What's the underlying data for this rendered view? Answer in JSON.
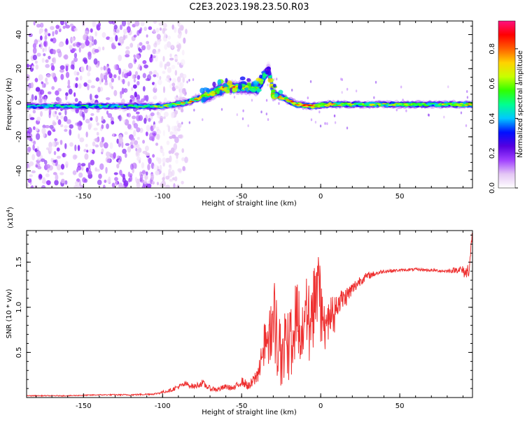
{
  "title": "C2E3.2023.198.23.50.R03",
  "colorbar": {
    "label": "Normalized spectral amplitude",
    "ticks": [
      "0.0",
      "0.2",
      "0.4",
      "0.6",
      "0.8"
    ],
    "tick_values": [
      0.0,
      0.2,
      0.4,
      0.6,
      0.8
    ],
    "range": [
      0,
      0.96
    ],
    "stops": [
      "#ffffff",
      "#e4c6f5",
      "#a040ff",
      "#5500e0",
      "#0010ff",
      "#00c8ff",
      "#00ff90",
      "#30ff00",
      "#c8ff00",
      "#ffd200",
      "#ff6000",
      "#ff0000",
      "#ff1080"
    ]
  },
  "chart_data": [
    {
      "type": "heatmap",
      "title": "C2E3.2023.198.23.50.R03",
      "xlabel": "Height of straight line (km)",
      "ylabel": "Frequency (Hz)",
      "xlim": [
        -186,
        96
      ],
      "ylim": [
        -50,
        48
      ],
      "xticks": [
        -150,
        -100,
        -50,
        0,
        50
      ],
      "xtick_labels": [
        "-150",
        "-100",
        "-50",
        "0",
        "50"
      ],
      "yticks": [
        -40,
        -20,
        0,
        20,
        40
      ],
      "ytick_labels": [
        "-40",
        "-20",
        "0",
        "20",
        "40"
      ],
      "ridge": [
        {
          "x": -186,
          "f": -2,
          "amp": 0.45
        },
        {
          "x": -150,
          "f": -2,
          "amp": 0.5
        },
        {
          "x": -120,
          "f": -2,
          "amp": 0.5
        },
        {
          "x": -100,
          "f": -2,
          "amp": 0.6
        },
        {
          "x": -85,
          "f": 0,
          "amp": 0.7
        },
        {
          "x": -70,
          "f": 5,
          "amp": 0.75
        },
        {
          "x": -60,
          "f": 9,
          "amp": 0.75
        },
        {
          "x": -50,
          "f": 9,
          "amp": 0.7
        },
        {
          "x": -40,
          "f": 8,
          "amp": 0.65
        },
        {
          "x": -33,
          "f": 20,
          "amp": 0.35
        },
        {
          "x": -30,
          "f": 5,
          "amp": 0.9
        },
        {
          "x": -22,
          "f": 2,
          "amp": 0.8
        },
        {
          "x": -15,
          "f": -1,
          "amp": 0.85
        },
        {
          "x": -5,
          "f": -2,
          "amp": 0.8
        },
        {
          "x": 5,
          "f": -1,
          "amp": 0.75
        },
        {
          "x": 20,
          "f": -1,
          "amp": 0.65
        },
        {
          "x": 50,
          "f": -1,
          "amp": 0.6
        },
        {
          "x": 80,
          "f": -1,
          "amp": 0.65
        },
        {
          "x": 96,
          "f": -1,
          "amp": 0.8
        }
      ],
      "noise_region_x": [
        -186,
        -105
      ],
      "noise_level": 0.12
    },
    {
      "type": "line",
      "xlabel": "Height of straight line (km)",
      "ylabel": "SNR (10 * v/v)",
      "multiplier": "(x10",
      "multiplier_exponent": "4",
      "multiplier_close": ")",
      "xlim": [
        -186,
        96
      ],
      "ylim": [
        0,
        1.85
      ],
      "xticks": [
        -150,
        -100,
        -50,
        0,
        50
      ],
      "xtick_labels": [
        "-150",
        "-100",
        "-50",
        "0",
        "50"
      ],
      "yticks": [
        0.5,
        1.0,
        1.5
      ],
      "ytick_labels": [
        "0.5",
        "1.0",
        "1.5"
      ],
      "color": "#ee3030",
      "series": [
        {
          "x": [
            -186,
            -160,
            -140,
            -120,
            -105,
            -95,
            -90,
            -85,
            -80,
            -75,
            -70,
            -65,
            -60,
            -55,
            -50,
            -45,
            -40,
            -37,
            -35,
            -32,
            -30,
            -28,
            -25,
            -22,
            -20,
            -17,
            -15,
            -12,
            -10,
            -7,
            -5,
            -3,
            -1,
            0,
            2,
            5,
            8,
            10,
            15,
            20,
            25,
            30,
            40,
            50,
            60,
            70,
            80,
            88,
            92,
            94,
            96
          ],
          "y": [
            0.02,
            0.02,
            0.03,
            0.03,
            0.04,
            0.08,
            0.12,
            0.15,
            0.12,
            0.16,
            0.1,
            0.09,
            0.12,
            0.1,
            0.18,
            0.12,
            0.25,
            0.55,
            0.7,
            0.85,
            1.05,
            0.8,
            0.6,
            0.95,
            0.7,
            0.85,
            1.0,
            0.75,
            1.1,
            0.9,
            1.1,
            1.35,
            1.6,
            1.05,
            0.85,
            1.0,
            0.95,
            1.05,
            1.1,
            1.2,
            1.3,
            1.35,
            1.4,
            1.41,
            1.42,
            1.41,
            1.4,
            1.42,
            1.38,
            1.45,
            1.8
          ],
          "jitter": [
            0.005,
            0.005,
            0.006,
            0.008,
            0.01,
            0.02,
            0.03,
            0.03,
            0.03,
            0.04,
            0.03,
            0.03,
            0.03,
            0.03,
            0.05,
            0.05,
            0.1,
            0.2,
            0.25,
            0.3,
            0.35,
            0.3,
            0.3,
            0.35,
            0.3,
            0.35,
            0.35,
            0.3,
            0.35,
            0.35,
            0.35,
            0.35,
            0.35,
            0.25,
            0.2,
            0.2,
            0.18,
            0.15,
            0.12,
            0.08,
            0.06,
            0.04,
            0.02,
            0.015,
            0.015,
            0.015,
            0.02,
            0.04,
            0.08,
            0.1,
            0.1
          ]
        }
      ]
    }
  ]
}
